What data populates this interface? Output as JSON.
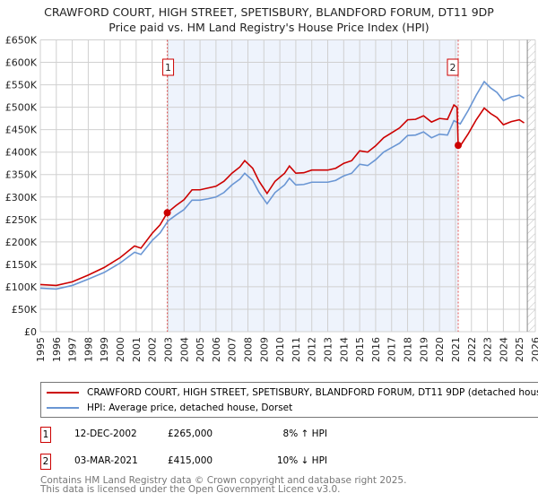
{
  "chart_data": {
    "type": "line",
    "title": "CRAWFORD COURT, HIGH STREET, SPETISBURY, BLANDFORD FORUM, DT11 9DP",
    "subtitle": "Price paid vs. HM Land Registry's House Price Index (HPI)",
    "xlim": [
      1995,
      2026
    ],
    "ylim": [
      0,
      650000
    ],
    "x_ticks": [
      "1995",
      "1996",
      "1997",
      "1998",
      "1999",
      "2000",
      "2001",
      "2002",
      "2003",
      "2004",
      "2005",
      "2006",
      "2007",
      "2008",
      "2009",
      "2010",
      "2011",
      "2012",
      "2013",
      "2014",
      "2015",
      "2016",
      "2017",
      "2018",
      "2019",
      "2020",
      "2021",
      "2022",
      "2023",
      "2024",
      "2025",
      "2026"
    ],
    "y_ticks": [
      {
        "v": 0,
        "l": "£0"
      },
      {
        "v": 50000,
        "l": "£50K"
      },
      {
        "v": 100000,
        "l": "£100K"
      },
      {
        "v": 150000,
        "l": "£150K"
      },
      {
        "v": 200000,
        "l": "£200K"
      },
      {
        "v": 250000,
        "l": "£250K"
      },
      {
        "v": 300000,
        "l": "£300K"
      },
      {
        "v": 350000,
        "l": "£350K"
      },
      {
        "v": 400000,
        "l": "£400K"
      },
      {
        "v": 450000,
        "l": "£450K"
      },
      {
        "v": 500000,
        "l": "£500K"
      },
      {
        "v": 550000,
        "l": "£550K"
      },
      {
        "v": 600000,
        "l": "£600K"
      },
      {
        "v": 650000,
        "l": "£650K"
      }
    ],
    "grid": true,
    "shaded_range": [
      2002.95,
      2021.17
    ],
    "forecast_hatch_from": 2025.5,
    "series": [
      {
        "name": "CRAWFORD COURT, HIGH STREET, SPETISBURY, BLANDFORD FORUM, DT11 9DP (detached house)",
        "color": "#cc0000",
        "x": [
          1995,
          1996,
          1997,
          1998,
          1999,
          2000,
          2000.9,
          2001.3,
          2002,
          2002.5,
          2002.95,
          2003.5,
          2004,
          2004.5,
          2005,
          2005.5,
          2006,
          2006.5,
          2007,
          2007.5,
          2007.8,
          2008.3,
          2008.7,
          2009.2,
          2009.7,
          2010.3,
          2010.6,
          2011,
          2011.5,
          2012,
          2012.5,
          2013,
          2013.5,
          2014,
          2014.5,
          2015,
          2015.5,
          2016,
          2016.5,
          2017,
          2017.5,
          2018,
          2018.5,
          2019,
          2019.5,
          2020,
          2020.5,
          2020.9,
          2021.1,
          2021.17,
          2021.3,
          2021.8,
          2022.3,
          2022.8,
          2023.2,
          2023.6,
          2024,
          2024.5,
          2025,
          2025.3
        ],
        "y": [
          105000,
          103000,
          111000,
          126000,
          143000,
          165000,
          191000,
          186000,
          219000,
          238000,
          265000,
          281000,
          294000,
          316000,
          316000,
          320000,
          324000,
          335000,
          353000,
          367000,
          381000,
          364000,
          335000,
          308000,
          335000,
          353000,
          369000,
          353000,
          354000,
          360000,
          360000,
          360000,
          364000,
          375000,
          381000,
          403000,
          400000,
          414000,
          432000,
          443000,
          454000,
          472000,
          473000,
          481000,
          467000,
          475000,
          473000,
          505000,
          500000,
          415000,
          414000,
          441000,
          472000,
          498000,
          486000,
          477000,
          461000,
          468000,
          472000,
          465000
        ]
      },
      {
        "name": "HPI: Average price, detached house, Dorset",
        "color": "#6a96d4",
        "x": [
          1995,
          1996,
          1997,
          1998,
          1999,
          2000,
          2000.9,
          2001.3,
          2002,
          2002.5,
          2003,
          2003.5,
          2004,
          2004.5,
          2005,
          2005.5,
          2006,
          2006.5,
          2007,
          2007.5,
          2007.8,
          2008.3,
          2008.7,
          2009.2,
          2009.7,
          2010.3,
          2010.6,
          2011,
          2011.5,
          2012,
          2012.5,
          2013,
          2013.5,
          2014,
          2014.5,
          2015,
          2015.5,
          2016,
          2016.5,
          2017,
          2017.5,
          2018,
          2018.5,
          2019,
          2019.5,
          2020,
          2020.5,
          2020.9,
          2021.3,
          2021.8,
          2022.3,
          2022.8,
          2023.2,
          2023.6,
          2024,
          2024.5,
          2025,
          2025.3
        ],
        "y": [
          97000,
          95000,
          103000,
          117000,
          132000,
          153000,
          177000,
          172000,
          203000,
          220000,
          247000,
          260000,
          272000,
          293000,
          293000,
          296000,
          300000,
          310000,
          327000,
          340000,
          353000,
          337000,
          310000,
          285000,
          310000,
          327000,
          342000,
          327000,
          328000,
          333000,
          333000,
          333000,
          337000,
          347000,
          353000,
          373000,
          370000,
          383000,
          400000,
          410000,
          420000,
          437000,
          438000,
          445000,
          432000,
          440000,
          438000,
          470000,
          463000,
          493000,
          527000,
          557000,
          543000,
          533000,
          515000,
          523000,
          527000,
          520000
        ]
      }
    ],
    "sales": [
      {
        "marker": "1",
        "x": 2002.95,
        "price": 265000,
        "date": "12-DEC-2002",
        "price_label": "£265,000",
        "hpi": "8% ↑ HPI"
      },
      {
        "marker": "2",
        "x": 2021.17,
        "price": 415000,
        "date": "03-MAR-2021",
        "price_label": "£415,000",
        "hpi": "10% ↓ HPI"
      }
    ]
  },
  "footer": {
    "line1": "Contains HM Land Registry data © Crown copyright and database right 2025.",
    "line2": "This data is licensed under the Open Government Licence v3.0."
  }
}
